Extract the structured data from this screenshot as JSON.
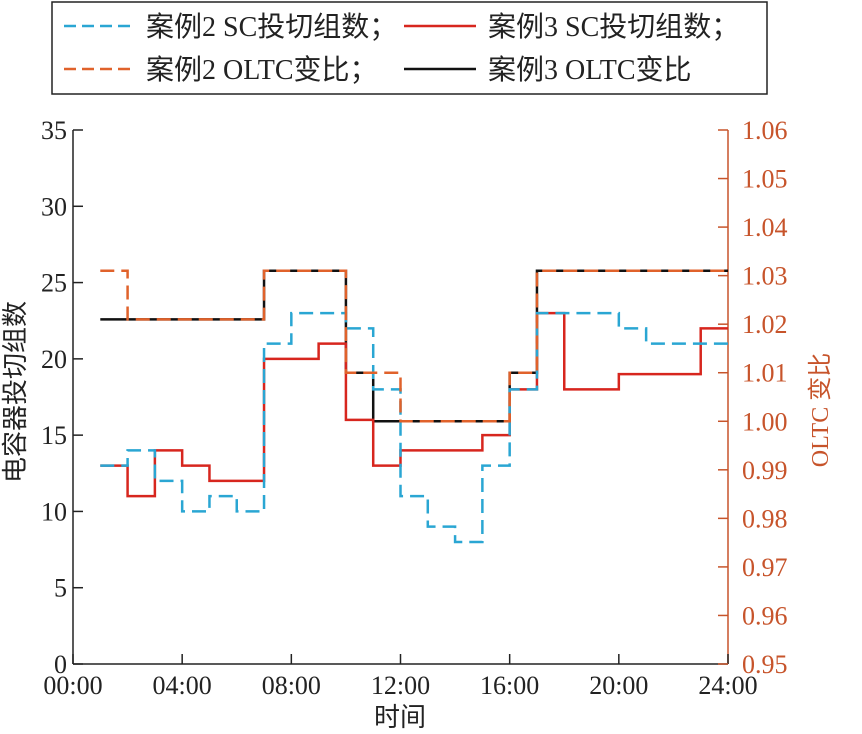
{
  "colors": {
    "case2_sc": "#2aa6d3",
    "case3_sc": "#d7261e",
    "case2_oltc": "#e0622b",
    "case3_oltc": "#111111",
    "right_axis": "#c7542b",
    "axis": "#222222"
  },
  "chart_data": {
    "type": "line",
    "step": true,
    "xlabel": "时间",
    "ylabel_left": "电容器投切组数",
    "ylabel_right": "OLTC 变比",
    "xlim": [
      0,
      24
    ],
    "ylim_left": [
      0,
      35
    ],
    "ylim_right": [
      0.95,
      1.06
    ],
    "x_ticks": [
      0,
      4,
      8,
      12,
      16,
      20,
      24
    ],
    "x_tick_labels": [
      "00:00",
      "04:00",
      "08:00",
      "12:00",
      "16:00",
      "20:00",
      "24:00"
    ],
    "y_left_ticks": [
      0,
      5,
      10,
      15,
      20,
      25,
      30,
      35
    ],
    "y_left_tick_labels": [
      "0",
      "5",
      "10",
      "15",
      "20",
      "25",
      "30",
      "35"
    ],
    "y_right_ticks": [
      0.95,
      0.96,
      0.97,
      0.98,
      0.99,
      1.0,
      1.01,
      1.02,
      1.03,
      1.04,
      1.05,
      1.06
    ],
    "y_right_tick_labels": [
      "0.95",
      "0.96",
      "0.97",
      "0.98",
      "0.99",
      "1.00",
      "1.01",
      "1.02",
      "1.03",
      "1.04",
      "1.05",
      "1.06"
    ],
    "grid": false,
    "legend_position": "top",
    "series": [
      {
        "name": "案例2 SC投切组数；",
        "axis": "left",
        "style": "dashed",
        "x": [
          1,
          2,
          3,
          4,
          5,
          6,
          7,
          8,
          9,
          10,
          11,
          12,
          13,
          14,
          15,
          16,
          17,
          18,
          19,
          20,
          21,
          22,
          23,
          24
        ],
        "values": [
          13,
          14,
          12,
          10,
          11,
          10,
          21,
          23,
          23,
          22,
          18,
          11,
          9,
          8,
          13,
          18,
          23,
          23,
          23,
          22,
          21,
          21,
          21,
          21
        ]
      },
      {
        "name": "案例3 SC投切组数；",
        "axis": "left",
        "style": "solid",
        "x": [
          1,
          2,
          3,
          4,
          5,
          6,
          7,
          8,
          9,
          10,
          11,
          12,
          13,
          14,
          15,
          16,
          17,
          18,
          19,
          20,
          21,
          22,
          23,
          24
        ],
        "values": [
          13,
          11,
          14,
          13,
          12,
          12,
          20,
          20,
          21,
          16,
          13,
          14,
          14,
          14,
          15,
          18,
          23,
          18,
          18,
          19,
          19,
          19,
          22,
          22
        ]
      },
      {
        "name": "案例2 OLTC变比；",
        "axis": "right",
        "style": "dashed",
        "x": [
          1,
          2,
          3,
          4,
          5,
          6,
          7,
          8,
          9,
          10,
          11,
          12,
          13,
          14,
          15,
          16,
          17,
          18,
          19,
          20,
          21,
          22,
          23,
          24
        ],
        "values": [
          1.031,
          1.021,
          1.021,
          1.021,
          1.021,
          1.021,
          1.031,
          1.031,
          1.031,
          1.01,
          1.01,
          1.0,
          1.0,
          1.0,
          1.0,
          1.01,
          1.031,
          1.031,
          1.031,
          1.031,
          1.031,
          1.031,
          1.031,
          1.031
        ]
      },
      {
        "name": "案例3 OLTC变比",
        "axis": "right",
        "style": "solid",
        "x": [
          1,
          2,
          3,
          4,
          5,
          6,
          7,
          8,
          9,
          10,
          11,
          12,
          13,
          14,
          15,
          16,
          17,
          18,
          19,
          20,
          21,
          22,
          23,
          24
        ],
        "values": [
          1.021,
          1.021,
          1.021,
          1.021,
          1.021,
          1.021,
          1.031,
          1.031,
          1.031,
          1.01,
          1.0,
          1.0,
          1.0,
          1.0,
          1.0,
          1.01,
          1.031,
          1.031,
          1.031,
          1.031,
          1.031,
          1.031,
          1.031,
          1.031
        ]
      }
    ]
  }
}
